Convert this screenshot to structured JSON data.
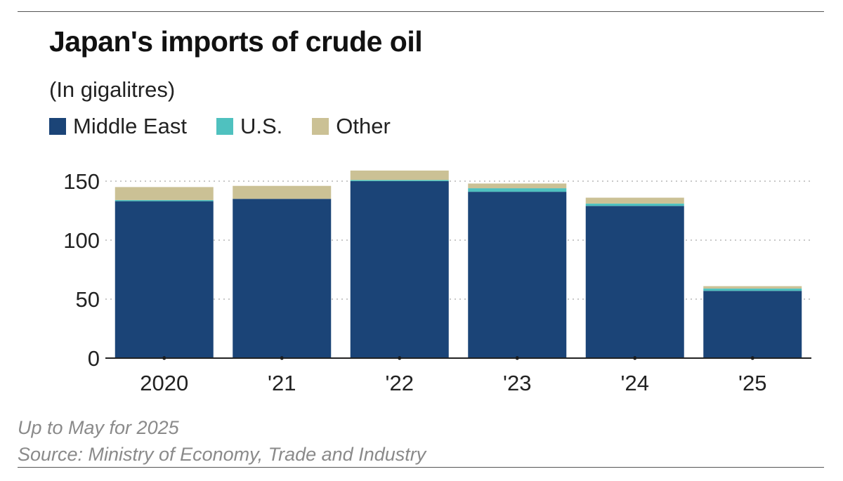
{
  "title": "Japan's imports of crude oil",
  "subtitle": "(In gigalitres)",
  "legend": [
    {
      "label": "Middle East",
      "color": "#1b4477"
    },
    {
      "label": "U.S.",
      "color": "#4fc1bf"
    },
    {
      "label": "Other",
      "color": "#cbc195"
    }
  ],
  "chart_data": {
    "type": "bar",
    "stacked": true,
    "categories": [
      "2020",
      "'21",
      "'22",
      "'23",
      "'24",
      "'25"
    ],
    "series": [
      {
        "name": "Middle East",
        "color": "#1b4477",
        "values": [
          133,
          135,
          150,
          141,
          129,
          57
        ]
      },
      {
        "name": "U.S.",
        "color": "#4fc1bf",
        "values": [
          1,
          0,
          1,
          3,
          2,
          2
        ]
      },
      {
        "name": "Other",
        "color": "#cbc195",
        "values": [
          11,
          11,
          8,
          4,
          5,
          2
        ]
      }
    ],
    "ylim": [
      0,
      160
    ],
    "yticks": [
      0,
      50,
      100,
      150
    ],
    "grid": true,
    "xlabel": "",
    "ylabel": ""
  },
  "notes": {
    "line1": "Up to May for 2025",
    "source": "Source: Ministry of Economy, Trade and Industry"
  }
}
